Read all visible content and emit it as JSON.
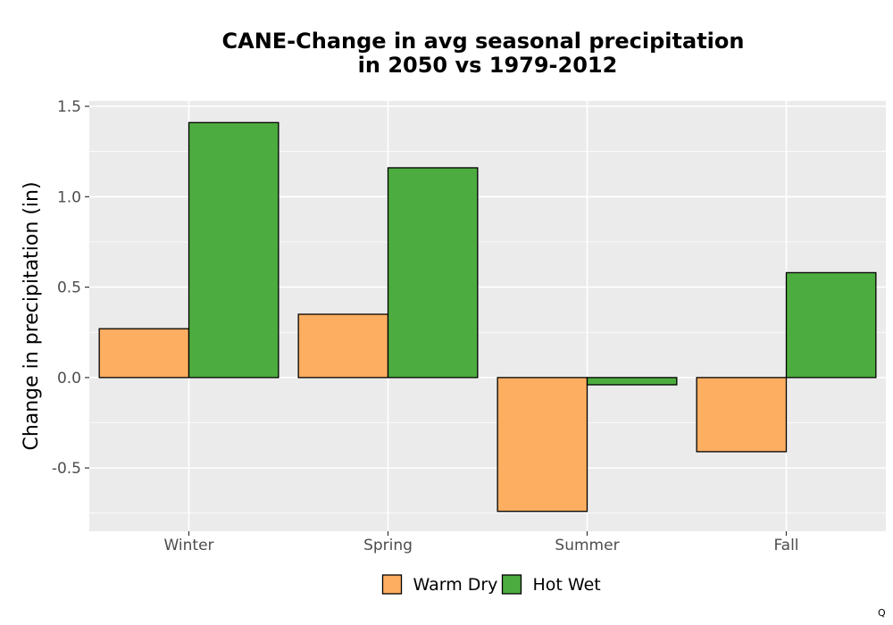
{
  "chart_data": {
    "type": "bar",
    "title": "CANE-Change in avg seasonal precipitation",
    "subtitle": "in 2050 vs 1979-2012",
    "xlabel": "",
    "ylabel": "Change in precipitation (in)",
    "categories": [
      "Winter",
      "Spring",
      "Summer",
      "Fall"
    ],
    "series": [
      {
        "name": "Warm Dry",
        "color": "#FDAE61",
        "values": [
          0.27,
          0.35,
          -0.74,
          -0.41
        ]
      },
      {
        "name": "Hot Wet",
        "color": "#4DAC3F",
        "values": [
          1.41,
          1.16,
          -0.04,
          0.58
        ]
      }
    ],
    "ylim": [
      -0.85,
      1.53
    ],
    "yticks": [
      -0.5,
      0.0,
      0.5,
      1.0,
      1.5
    ],
    "ytick_labels": [
      "-0.5",
      "0.0",
      "0.5",
      "1.0",
      "1.5"
    ],
    "grid": true,
    "legend_position": "bottom",
    "panel_background": "#EBEBEB",
    "gridline_color": "#FFFFFF"
  },
  "corner_mark": "Q"
}
